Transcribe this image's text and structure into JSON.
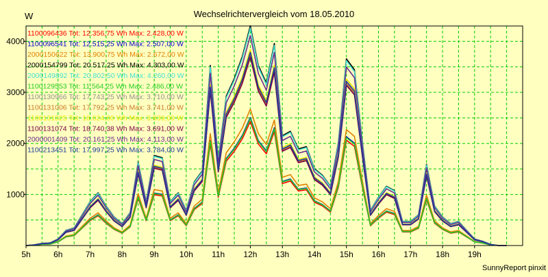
{
  "chart_data": {
    "type": "line",
    "title": "Wechselrichtervergleich vom 18.05.2010",
    "ylabel": "W",
    "xlabel": "",
    "footer": "SunnyReport pinxit",
    "ylim": [
      0,
      4300
    ],
    "xlim": [
      5,
      20.5
    ],
    "grid": true,
    "legend_position": "top-left",
    "y_ticks": [
      "1000",
      "2000",
      "3000",
      "4000"
    ],
    "x_ticks": [
      "5h",
      "6h",
      "7h",
      "8h",
      "9h",
      "10h",
      "11h",
      "12h",
      "13h",
      "14h",
      "15h",
      "16h",
      "17h",
      "18h",
      "19h"
    ],
    "x": [
      5,
      5.25,
      5.5,
      5.75,
      6,
      6.25,
      6.5,
      6.75,
      7,
      7.25,
      7.5,
      7.75,
      8,
      8.25,
      8.5,
      8.75,
      9,
      9.25,
      9.5,
      9.75,
      10,
      10.25,
      10.5,
      10.75,
      11,
      11.25,
      11.5,
      11.75,
      12,
      12.25,
      12.5,
      12.75,
      13,
      13.25,
      13.5,
      13.75,
      14,
      14.25,
      14.5,
      14.75,
      15,
      15.25,
      15.5,
      15.75,
      16,
      16.25,
      16.5,
      16.75,
      17,
      17.25,
      17.5,
      17.75,
      18,
      18.25,
      18.5,
      18.75,
      19,
      19.25,
      19.5,
      19.75,
      20
    ],
    "base_profile": [
      0,
      0.003,
      0.01,
      0.012,
      0.03,
      0.07,
      0.08,
      0.14,
      0.2,
      0.24,
      0.18,
      0.13,
      0.1,
      0.15,
      0.38,
      0.2,
      0.41,
      0.4,
      0.2,
      0.24,
      0.16,
      0.29,
      0.34,
      0.82,
      0.39,
      0.68,
      0.76,
      0.86,
      1.0,
      0.82,
      0.74,
      0.92,
      0.5,
      0.52,
      0.44,
      0.45,
      0.35,
      0.32,
      0.27,
      0.47,
      0.85,
      0.8,
      0.47,
      0.16,
      0.22,
      0.27,
      0.25,
      0.11,
      0.11,
      0.14,
      0.37,
      0.18,
      0.13,
      0.1,
      0.11,
      0.07,
      0.03,
      0.02,
      0.005,
      0.0,
      0.0
    ],
    "series": [
      {
        "name": "1100096436 Tot: 12.356,75 Wh Max: 2.428,00 W",
        "color": "#FF0000",
        "scale": 2428
      },
      {
        "name": "1100096541 Tot: 12.515,25 Wh Max: 2.507,00 W",
        "color": "#0000CC",
        "scale": 2507
      },
      {
        "name": "2000150622 Tot: 13.900,75 Wh Max: 2.672,00 W",
        "color": "#E08000",
        "scale": 2672
      },
      {
        "name": "2000154799 Tot: 20.517,25 Wh Max: 4.303,00 W",
        "color": "#000000",
        "scale": 4303
      },
      {
        "name": "2000149892 Tot: 20.802,50 Wh Max: 4.260,00 W",
        "color": "#40E0D0",
        "scale": 4260
      },
      {
        "name": "1100129553 Tot: 11.564,25 Wh Max: 2.486,00 W",
        "color": "#22CC22",
        "scale": 2486
      },
      {
        "name": "1100130966 Tot: 17.743,25 Wh Max: 3.710,00 W",
        "color": "#909090",
        "scale": 3710
      },
      {
        "name": "1100131006 Tot: 17.792,25 Wh Max: 3.741,00 W",
        "color": "#C87A2A",
        "scale": 3741
      },
      {
        "name": "1100131025 Tot: 18.024,00 Wh Max: 3.839,00 W",
        "color": "#E8E800",
        "scale": 3839
      },
      {
        "name": "1100131074 Tot: 18.740,38 Wh Max: 3.691,00 W",
        "color": "#7A0044",
        "scale": 3691
      },
      {
        "name": "2000001409 Tot: 20.161,25 Wh Max: 4.113,00 W",
        "color": "#6A2C8C",
        "scale": 4113
      },
      {
        "name": "1100213451 Tot: 17.997,25 Wh Max: 3.784,00 W",
        "color": "#1C3C9C",
        "scale": 3784
      }
    ]
  }
}
